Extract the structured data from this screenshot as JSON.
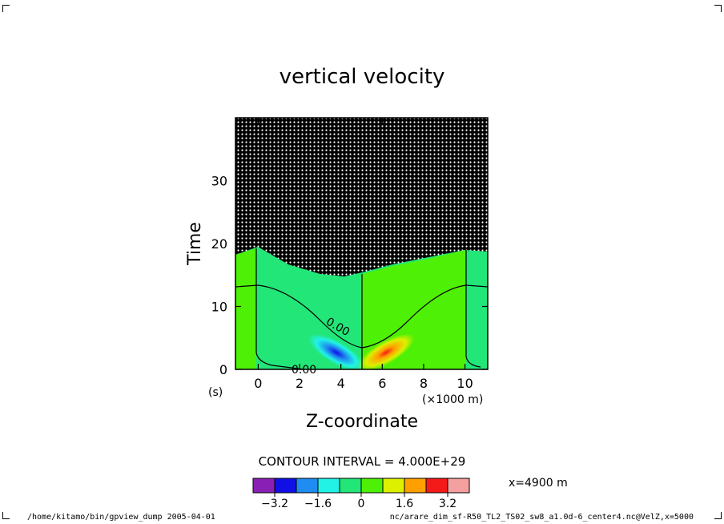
{
  "chart_data": {
    "type": "heatmap",
    "subtype": "filled-contour",
    "title": "vertical velocity",
    "xlabel": "Z-coordinate",
    "x_unit_note": "(×1000 m)",
    "ylabel": "Time",
    "y_unit_note": "(s)",
    "xlim": [
      -1.1,
      11.1
    ],
    "ylim": [
      0,
      40
    ],
    "x_ticks": [
      0,
      2,
      4,
      6,
      8,
      10
    ],
    "y_ticks": [
      0,
      10,
      20,
      30
    ],
    "contour_labels": [
      "0.00",
      "0.00"
    ],
    "contour_interval_text": "CONTOUR INTERVAL = 4.000E+29",
    "colorbar": {
      "colors": [
        "#8a1fb5",
        "#1010e6",
        "#1e8cf0",
        "#22f2e6",
        "#22e678",
        "#4ef005",
        "#dcf000",
        "#ffa000",
        "#f51a1a",
        "#f5a0a0"
      ],
      "tick_labels": [
        "−3.2",
        "−1.6",
        "0",
        "1.6",
        "3.2"
      ],
      "tick_values": [
        -3.2,
        -1.6,
        0,
        1.6,
        3.2
      ],
      "range": [
        -4,
        4
      ]
    },
    "slice_note": "x=4900 m"
  },
  "footer": {
    "left": "/home/kitamo/bin/gpview_dump  2005-04-01",
    "right": "nc/arare_dim_sf-R50_TL2_TS02_sw8_a1.0d-6_center4.nc@VelZ,x=5000"
  }
}
